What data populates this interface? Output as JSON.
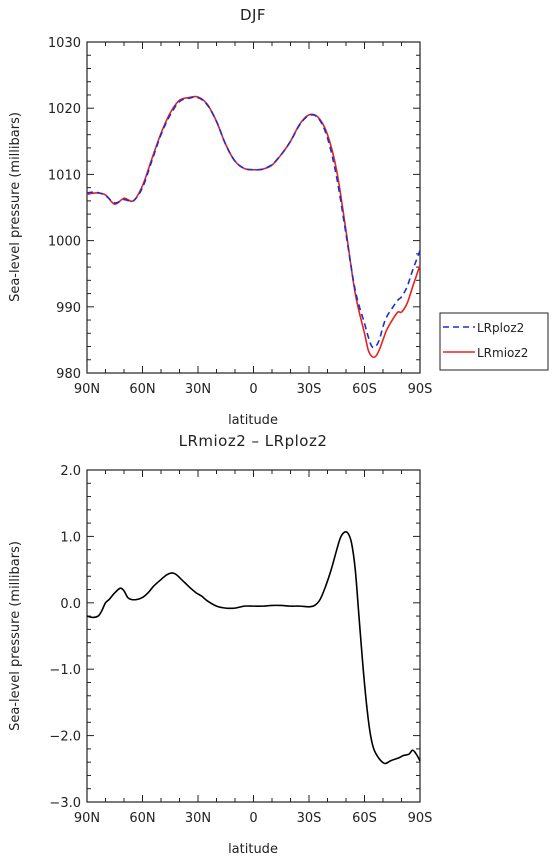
{
  "chart_data": [
    {
      "type": "line",
      "title": "DJF",
      "xlabel": "latitude",
      "ylabel": "Sea-level pressure (millibars)",
      "xlim": [
        90,
        -90
      ],
      "ylim": [
        980,
        1030
      ],
      "xticks": [
        {
          "value": 90,
          "label": "90N"
        },
        {
          "value": 60,
          "label": "60N"
        },
        {
          "value": 30,
          "label": "30N"
        },
        {
          "value": 0,
          "label": "0"
        },
        {
          "value": -30,
          "label": "30S"
        },
        {
          "value": -60,
          "label": "60S"
        },
        {
          "value": -90,
          "label": "90S"
        }
      ],
      "yticks": [
        980,
        990,
        1000,
        1010,
        1020,
        1030
      ],
      "legend": "right",
      "series": [
        {
          "name": "LRploz2",
          "color": "#1a2fd6",
          "dash": true,
          "x": [
            90,
            85,
            80,
            75,
            70,
            65,
            60,
            55,
            50,
            45,
            40,
            35,
            30,
            25,
            20,
            15,
            10,
            5,
            0,
            -5,
            -10,
            -15,
            -20,
            -25,
            -30,
            -35,
            -40,
            -45,
            -50,
            -55,
            -60,
            -62,
            -64,
            -66,
            -68,
            -70,
            -72,
            -75,
            -78,
            -80,
            -83,
            -86,
            -90
          ],
          "y": [
            1007.2,
            1007.3,
            1006.8,
            1005.7,
            1006.2,
            1006.0,
            1008.0,
            1012.0,
            1016.0,
            1019.0,
            1021.0,
            1021.5,
            1021.6,
            1020.5,
            1018.0,
            1014.5,
            1012.0,
            1010.9,
            1010.7,
            1010.8,
            1011.5,
            1013.0,
            1015.0,
            1017.5,
            1018.9,
            1018.5,
            1015.5,
            1009.5,
            1001.0,
            992.5,
            987.5,
            985.5,
            984.0,
            984.0,
            985.0,
            987.0,
            988.5,
            989.8,
            991.0,
            991.5,
            993.0,
            995.5,
            998.5
          ]
        },
        {
          "name": "LRmioz2",
          "color": "#e8221b",
          "dash": false,
          "x": [
            90,
            85,
            80,
            75,
            70,
            65,
            60,
            55,
            50,
            45,
            40,
            35,
            30,
            25,
            20,
            15,
            10,
            5,
            0,
            -5,
            -10,
            -15,
            -20,
            -25,
            -30,
            -35,
            -40,
            -45,
            -50,
            -55,
            -60,
            -62,
            -64,
            -66,
            -68,
            -70,
            -72,
            -75,
            -78,
            -80,
            -83,
            -86,
            -90
          ],
          "y": [
            1007.0,
            1007.2,
            1006.9,
            1005.5,
            1006.4,
            1006.0,
            1008.3,
            1012.3,
            1016.2,
            1019.3,
            1021.2,
            1021.6,
            1021.7,
            1020.6,
            1018.0,
            1014.5,
            1012.0,
            1010.9,
            1010.7,
            1010.8,
            1011.4,
            1013.0,
            1015.0,
            1017.6,
            1019.0,
            1018.6,
            1016.0,
            1010.5,
            1001.5,
            992.0,
            986.0,
            983.5,
            982.5,
            982.5,
            983.5,
            985.0,
            986.5,
            988.0,
            989.2,
            989.2,
            990.5,
            993.0,
            996.3
          ]
        }
      ]
    },
    {
      "type": "line",
      "title": "LRmioz2 – LRploz2",
      "xlabel": "latitude",
      "ylabel": "Sea-level pressure (millibars)",
      "xlim": [
        90,
        -90
      ],
      "ylim": [
        -3.0,
        2.0
      ],
      "xticks": [
        {
          "value": 90,
          "label": "90N"
        },
        {
          "value": 60,
          "label": "60N"
        },
        {
          "value": 30,
          "label": "30N"
        },
        {
          "value": 0,
          "label": "0"
        },
        {
          "value": -30,
          "label": "30S"
        },
        {
          "value": -60,
          "label": "60S"
        },
        {
          "value": -90,
          "label": "90S"
        }
      ],
      "yticks": [
        {
          "value": -3.0,
          "label": "−3.0"
        },
        {
          "value": -2.0,
          "label": "−2.0"
        },
        {
          "value": -1.0,
          "label": "−1.0"
        },
        {
          "value": 0.0,
          "label": "0.0"
        },
        {
          "value": 1.0,
          "label": "1.0"
        },
        {
          "value": 2.0,
          "label": "2.0"
        }
      ],
      "series": [
        {
          "color": "#000000",
          "dash": false,
          "x": [
            90,
            87,
            84,
            82,
            80,
            78,
            75,
            72,
            70,
            68,
            66,
            63,
            60,
            57,
            54,
            50,
            47,
            44,
            42,
            40,
            37,
            34,
            31,
            28,
            25,
            20,
            15,
            10,
            5,
            0,
            -5,
            -10,
            -15,
            -20,
            -25,
            -30,
            -33,
            -36,
            -39,
            -42,
            -45,
            -47,
            -49,
            -51,
            -53,
            -55,
            -57,
            -59,
            -61,
            -63,
            -65,
            -68,
            -71,
            -74,
            -77,
            -79,
            -81,
            -84,
            -86,
            -88,
            -90
          ],
          "y": [
            -0.2,
            -0.22,
            -0.2,
            -0.12,
            0.0,
            0.05,
            0.15,
            0.22,
            0.18,
            0.08,
            0.05,
            0.05,
            0.08,
            0.15,
            0.25,
            0.35,
            0.42,
            0.45,
            0.43,
            0.38,
            0.3,
            0.22,
            0.15,
            0.1,
            0.03,
            -0.05,
            -0.08,
            -0.08,
            -0.05,
            -0.05,
            -0.05,
            -0.04,
            -0.04,
            -0.05,
            -0.05,
            -0.06,
            -0.04,
            0.05,
            0.25,
            0.5,
            0.8,
            0.98,
            1.06,
            1.05,
            0.9,
            0.5,
            -0.2,
            -0.9,
            -1.5,
            -1.95,
            -2.2,
            -2.35,
            -2.42,
            -2.38,
            -2.35,
            -2.33,
            -2.3,
            -2.28,
            -2.22,
            -2.28,
            -2.38
          ]
        }
      ]
    }
  ]
}
